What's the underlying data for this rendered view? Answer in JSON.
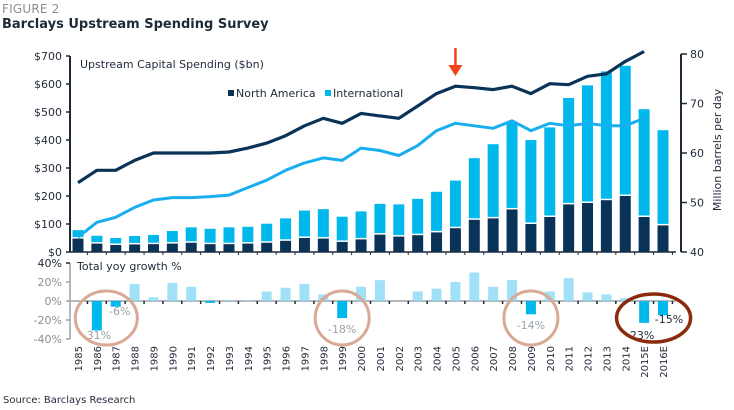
{
  "figure": {
    "label": "FIGURE 2",
    "title": "Barclays Upstream Spending Survey",
    "source": "Source: Barclays Research"
  },
  "colors": {
    "north_america": "#0a3358",
    "international": "#00b8ec",
    "international_line": "#18aef0",
    "growth_bar": "#8fdcf7",
    "growth_bar_neg": "#00b8ec",
    "arrow": "#f2421b",
    "circle_light": "#d9a995",
    "circle_dark": "#8c2a0e"
  },
  "chart_data": [
    {
      "type": "bar",
      "stacked": true,
      "title": "Upstream Capital Spending ($bn)",
      "categories": [
        "1985",
        "1986",
        "1987",
        "1988",
        "1989",
        "1990",
        "1991",
        "1992",
        "1993",
        "1994",
        "1995",
        "1996",
        "1997",
        "1998",
        "1999",
        "2000",
        "2001",
        "2002",
        "2003",
        "2004",
        "2005",
        "2006",
        "2007",
        "2008",
        "2009",
        "2010",
        "2011",
        "2012",
        "2013",
        "2014",
        "2015E",
        "2016E"
      ],
      "series": [
        {
          "name": "North America",
          "axis": "left",
          "type": "bar",
          "values": [
            48,
            30,
            25,
            27,
            28,
            30,
            33,
            28,
            28,
            30,
            33,
            40,
            50,
            48,
            36,
            45,
            62,
            55,
            60,
            70,
            85,
            115,
            120,
            152,
            100,
            125,
            170,
            175,
            185,
            200,
            125,
            95
          ]
        },
        {
          "name": "International",
          "axis": "left",
          "type": "bar",
          "values": [
            30,
            28,
            25,
            30,
            33,
            45,
            55,
            55,
            60,
            60,
            68,
            80,
            98,
            105,
            90,
            100,
            110,
            115,
            130,
            145,
            170,
            220,
            265,
            310,
            300,
            320,
            380,
            420,
            460,
            465,
            385,
            340
          ]
        },
        {
          "name": "North America production",
          "axis": "right",
          "type": "line",
          "values": [
            54,
            56.5,
            56.5,
            58.5,
            60,
            60,
            60,
            60,
            60.2,
            61,
            62,
            63.5,
            65.5,
            67,
            66,
            68,
            67.5,
            67,
            69.5,
            72,
            73.5,
            73.2,
            72.8,
            73.5,
            72,
            74,
            73.8,
            75.5,
            76,
            78.5,
            80.5,
            null
          ]
        },
        {
          "name": "International production",
          "axis": "right",
          "type": "line",
          "values": [
            43,
            46,
            47,
            49,
            50.5,
            51,
            51,
            51.2,
            51.5,
            53,
            54.5,
            56.5,
            58,
            59,
            58.5,
            61,
            60.5,
            59.5,
            61.5,
            64.5,
            66,
            65.5,
            65,
            66.5,
            64.5,
            66,
            65.5,
            66,
            65.5,
            65.5,
            67,
            null
          ]
        }
      ],
      "legend": [
        "North America",
        "International"
      ],
      "legend_placement": "top-center",
      "ylabel_left": "",
      "ylabel_right": "Million barrels per day",
      "ylim_left": [
        0,
        700
      ],
      "yticks_left": [
        "$0",
        "$100",
        "$200",
        "$300",
        "$400",
        "$500",
        "$600",
        "$700"
      ],
      "ylim_right": [
        40,
        80
      ],
      "yticks_right": [
        "40",
        "50",
        "60",
        "70",
        "80"
      ],
      "annotations": [
        {
          "type": "arrow",
          "at": "2005",
          "direction": "down"
        }
      ]
    },
    {
      "type": "bar",
      "title": "Total yoy growth %",
      "categories": [
        "1985",
        "1986",
        "1987",
        "1988",
        "1989",
        "1990",
        "1991",
        "1992",
        "1993",
        "1994",
        "1995",
        "1996",
        "1997",
        "1998",
        "1999",
        "2000",
        "2001",
        "2002",
        "2003",
        "2004",
        "2005",
        "2006",
        "2007",
        "2008",
        "2009",
        "2010",
        "2011",
        "2012",
        "2013",
        "2014",
        "2015E",
        "2016E"
      ],
      "values": [
        0,
        -31,
        -6,
        18,
        4,
        19,
        15,
        -2,
        1,
        1,
        10,
        14,
        18,
        7,
        -18,
        15,
        22,
        0,
        10,
        13,
        20,
        30,
        15,
        22,
        -14,
        10,
        24,
        9,
        7,
        3,
        -23,
        -15
      ],
      "ylim": [
        -40,
        40
      ],
      "yticks": [
        "-40%",
        "-20%",
        "0%",
        "20%",
        "40%"
      ],
      "data_labels": [
        {
          "category": "1986",
          "text": "-31%"
        },
        {
          "category": "1987",
          "text": "-6%"
        },
        {
          "category": "1999",
          "text": "-18%"
        },
        {
          "category": "2009",
          "text": "-14%"
        },
        {
          "category": "2015E",
          "text": "-23%"
        },
        {
          "category": "2016E",
          "text": "-15%"
        }
      ],
      "highlight_circles": [
        {
          "around": [
            "1986",
            "1987"
          ],
          "style": "light"
        },
        {
          "around": [
            "1999"
          ],
          "style": "light"
        },
        {
          "around": [
            "2009"
          ],
          "style": "light"
        },
        {
          "around": [
            "2015E",
            "2016E"
          ],
          "style": "dark"
        }
      ]
    }
  ]
}
